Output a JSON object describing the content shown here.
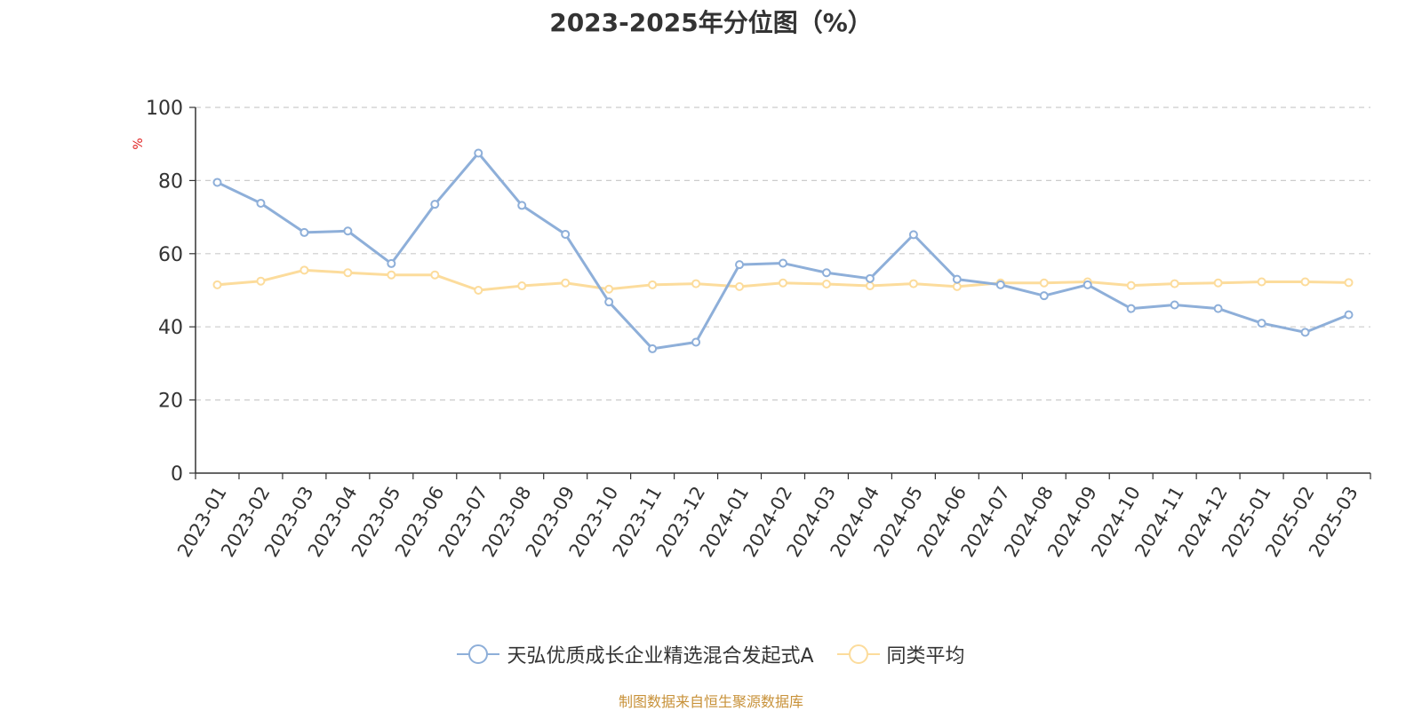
{
  "chart_data": {
    "type": "line",
    "title": "2023-2025年分位图（%）",
    "ylabel": "%",
    "xlabel": "",
    "ylim": [
      0,
      100
    ],
    "yticks": [
      0,
      20,
      40,
      60,
      80,
      100
    ],
    "grid": true,
    "legend_position": "bottom",
    "categories": [
      "2023-01",
      "2023-02",
      "2023-03",
      "2023-04",
      "2023-05",
      "2023-06",
      "2023-07",
      "2023-08",
      "2023-09",
      "2023-10",
      "2023-11",
      "2023-12",
      "2024-01",
      "2024-02",
      "2024-03",
      "2024-04",
      "2024-05",
      "2024-06",
      "2024-07",
      "2024-08",
      "2024-09",
      "2024-10",
      "2024-11",
      "2024-12",
      "2025-01",
      "2025-02",
      "2025-03"
    ],
    "series": [
      {
        "name": "天弘优质成长企业精选混合发起式A",
        "color": "#8eafd9",
        "values": [
          79.5,
          73.8,
          65.8,
          66.2,
          57.3,
          73.5,
          87.5,
          73.2,
          65.3,
          46.8,
          34.0,
          35.8,
          57.0,
          57.4,
          54.8,
          53.2,
          65.2,
          53.0,
          51.5,
          48.5,
          51.5,
          45.0,
          46.0,
          45.0,
          41.0,
          38.5,
          43.3
        ]
      },
      {
        "name": "同类平均",
        "color": "#fcdc9c",
        "values": [
          51.5,
          52.5,
          55.5,
          54.8,
          54.2,
          54.2,
          50.0,
          51.2,
          52.0,
          50.3,
          51.5,
          51.8,
          51.0,
          52.0,
          51.7,
          51.2,
          51.8,
          51.0,
          52.0,
          52.0,
          52.3,
          51.3,
          51.8,
          52.0,
          52.3,
          52.3,
          52.1
        ]
      }
    ]
  },
  "footer": {
    "source": "制图数据来自恒生聚源数据库"
  }
}
